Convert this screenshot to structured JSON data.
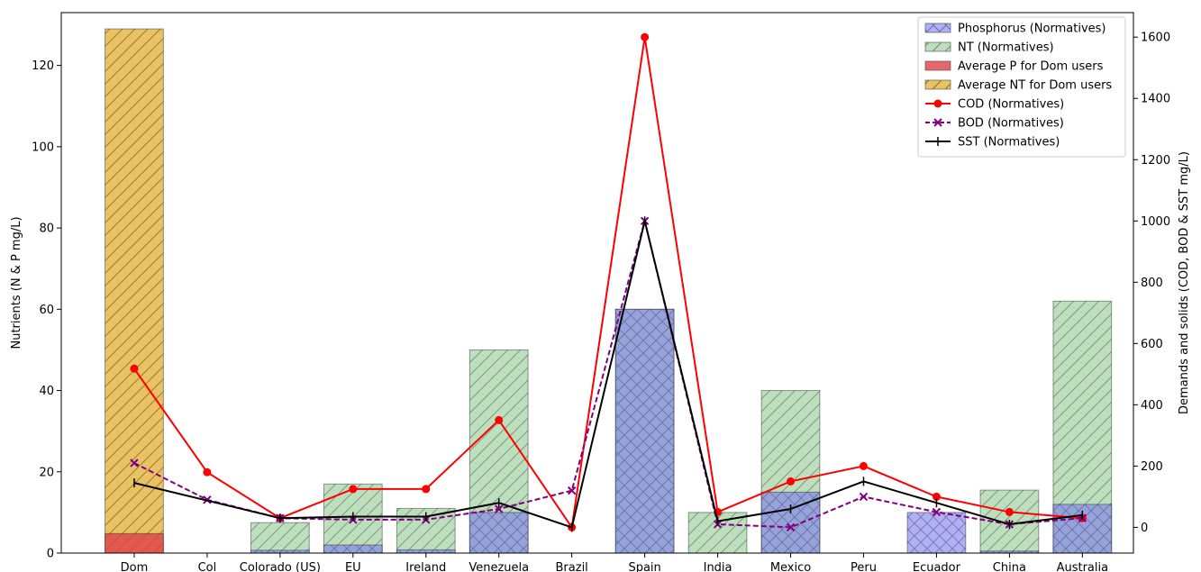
{
  "chart_data": {
    "type": "bar",
    "title": "",
    "categories": [
      "Dom",
      "Col",
      "Colorado (US)",
      "EU",
      "Ireland",
      "Venezuela",
      "Brazil",
      "Spain",
      "India",
      "Mexico",
      "Peru",
      "Ecuador",
      "China",
      "Australia"
    ],
    "left_axis": {
      "label": "Nutrients (N & P mg/L)",
      "ylim": [
        0,
        133
      ],
      "ticks": [
        0,
        20,
        40,
        60,
        80,
        100,
        120
      ]
    },
    "right_axis": {
      "label": "Demands and solids (COD, BOD & SST mg/L)",
      "ylim": [
        -84,
        1680
      ],
      "ticks": [
        0,
        200,
        400,
        600,
        800,
        1000,
        1200,
        1400,
        1600
      ]
    },
    "series": [
      {
        "name": "Phosphorus (Normatives)",
        "kind": "bar",
        "axis": "left",
        "color": "#7b7bf0",
        "hatch": "x",
        "values": [
          null,
          null,
          0.7,
          2,
          0.8,
          10,
          null,
          60,
          null,
          15,
          null,
          10,
          0.5,
          12
        ]
      },
      {
        "name": "NT (Normatives)",
        "kind": "bar",
        "axis": "left",
        "color": "#8fc98f",
        "hatch": "/",
        "values": [
          null,
          null,
          7.5,
          17,
          11,
          50,
          null,
          60,
          10,
          40,
          null,
          null,
          15.5,
          62
        ]
      },
      {
        "name": "Average P for Dom users",
        "kind": "bar",
        "axis": "left",
        "color": "#e0404a",
        "values": [
          4.8,
          null,
          null,
          null,
          null,
          null,
          null,
          null,
          null,
          null,
          null,
          null,
          null,
          null
        ]
      },
      {
        "name": "Average NT for Dom users",
        "kind": "bar",
        "axis": "left",
        "color": "#e3b43c",
        "hatch": "/",
        "values": [
          129,
          null,
          null,
          null,
          null,
          null,
          null,
          null,
          null,
          null,
          null,
          null,
          null,
          null
        ]
      },
      {
        "name": "COD (Normatives)",
        "kind": "line",
        "axis": "right",
        "color": "#ff0000",
        "marker": "o",
        "values": [
          518,
          180,
          30,
          125,
          125,
          350,
          0,
          1600,
          50,
          150,
          200,
          100,
          50,
          30
        ]
      },
      {
        "name": "BOD (Normatives)",
        "kind": "line",
        "axis": "right",
        "color": "#800080",
        "dash": true,
        "marker": "x",
        "values": [
          210,
          90,
          30,
          25,
          25,
          60,
          120,
          1000,
          10,
          0,
          100,
          50,
          10,
          30
        ]
      },
      {
        "name": "SST (Normatives)",
        "kind": "line",
        "axis": "right",
        "color": "#000000",
        "marker": "|",
        "values": [
          145,
          null,
          30,
          35,
          35,
          80,
          0,
          1000,
          20,
          60,
          150,
          80,
          10,
          40
        ]
      }
    ],
    "grid": false,
    "legend_position": "top-right"
  }
}
